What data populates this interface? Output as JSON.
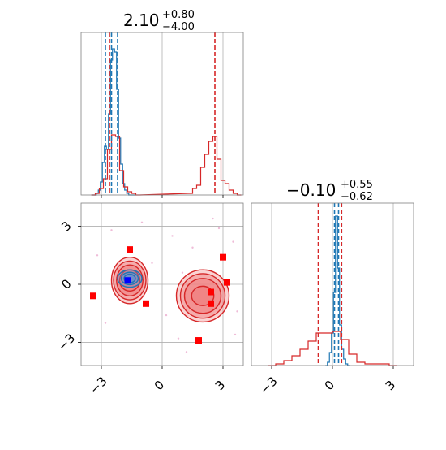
{
  "chart_data": [
    {
      "type": "histogram",
      "title": {
        "value": "2.10",
        "upper": "+0.80",
        "lower": "−4.00"
      },
      "xlim": [
        -4.0,
        4.0
      ],
      "ylim": [
        0,
        1.0
      ],
      "grid": true,
      "x_gridlines": [
        -3,
        0,
        3
      ],
      "colors": {
        "series_a": "#1f77b4",
        "series_b": "#d62728"
      },
      "series": [
        {
          "color": "#1f77b4",
          "x": [
            -3.4,
            -3.3,
            -3.2,
            -3.1,
            -3.0,
            -2.9,
            -2.8,
            -2.7,
            -2.6,
            -2.5,
            -2.4,
            -2.3,
            -2.2,
            -2.1,
            -2.0,
            -1.9,
            -1.8,
            -1.7,
            -1.6,
            -1.5,
            -1.4
          ],
          "values": [
            0,
            0,
            0.01,
            0.03,
            0.08,
            0.2,
            0.3,
            0.28,
            0.5,
            0.83,
            0.9,
            0.88,
            0.65,
            0.35,
            0.19,
            0.07,
            0.03,
            0.01,
            0,
            0,
            0
          ],
          "quantile_lines": [
            -2.8,
            -2.5,
            -2.2
          ]
        },
        {
          "color": "#d62728",
          "x": [
            -3.4,
            -3.2,
            -3.0,
            -2.8,
            -2.6,
            -2.4,
            -2.2,
            -2.0,
            -1.8,
            -1.6,
            -1.4,
            -1.2,
            1.4,
            1.6,
            1.8,
            2.0,
            2.2,
            2.4,
            2.6,
            2.8,
            3.0,
            3.2,
            3.4,
            3.6,
            3.8
          ],
          "values": [
            0,
            0.01,
            0.04,
            0.1,
            0.28,
            0.37,
            0.36,
            0.15,
            0.05,
            0.02,
            0.01,
            0,
            0.01,
            0.04,
            0.06,
            0.17,
            0.25,
            0.33,
            0.36,
            0.22,
            0.09,
            0.07,
            0.03,
            0.01,
            0
          ],
          "quantile_lines": [
            -2.6,
            2.6
          ]
        }
      ]
    },
    {
      "type": "scatter",
      "xlim": [
        -4.0,
        4.0
      ],
      "ylim": [
        -4.2,
        4.2
      ],
      "x_ticks": [
        "−3",
        "0",
        "3"
      ],
      "y_ticks": [
        "3",
        "0",
        "−3"
      ],
      "x_tick_values": [
        -3,
        0,
        3
      ],
      "y_tick_values": [
        3,
        0,
        -3
      ],
      "grid": true,
      "contours": [
        {
          "cx": -1.6,
          "cy": 0.2,
          "rx": [
            0.9,
            0.8,
            0.65,
            0.5
          ],
          "ry": [
            1.2,
            1.0,
            0.8,
            0.55
          ],
          "color": "#d62728",
          "fill": "#f08080"
        },
        {
          "cx": 2.0,
          "cy": -0.6,
          "rx": [
            1.3,
            1.1,
            0.9,
            0.55
          ],
          "ry": [
            1.35,
            1.15,
            0.9,
            0.5
          ],
          "color": "#d62728",
          "fill": "#f08080"
        },
        {
          "cx": -1.6,
          "cy": 0.3,
          "rx": [
            0.6,
            0.42,
            0.28
          ],
          "ry": [
            0.45,
            0.32,
            0.22
          ],
          "color": "#1f77b4",
          "fill": "#5a8fd8"
        }
      ],
      "markers": [
        {
          "x": -3.4,
          "y": -0.6,
          "color": "#ff0000"
        },
        {
          "x": -1.6,
          "y": 1.8,
          "color": "#ff0000"
        },
        {
          "x": -0.8,
          "y": -1.0,
          "color": "#ff0000"
        },
        {
          "x": 1.8,
          "y": -2.9,
          "color": "#ff0000"
        },
        {
          "x": 2.4,
          "y": -0.4,
          "color": "#ff0000"
        },
        {
          "x": 2.4,
          "y": -1.0,
          "color": "#ff0000"
        },
        {
          "x": 3.0,
          "y": 1.4,
          "color": "#ff0000"
        },
        {
          "x": 3.2,
          "y": 0.1,
          "color": "#ff0000"
        },
        {
          "x": -1.7,
          "y": 0.2,
          "color": "#0000ff"
        }
      ],
      "scatter_points": [
        {
          "x": -2.5,
          "y": 2.8
        },
        {
          "x": -1.0,
          "y": 3.2
        },
        {
          "x": 0.5,
          "y": 2.5
        },
        {
          "x": 2.5,
          "y": 3.4
        },
        {
          "x": 3.5,
          "y": 2.2
        },
        {
          "x": -3.2,
          "y": 1.5
        },
        {
          "x": 0.8,
          "y": -2.8
        },
        {
          "x": 1.2,
          "y": -3.5
        },
        {
          "x": 3.6,
          "y": -2.6
        },
        {
          "x": -0.5,
          "y": 1.1
        },
        {
          "x": 1.0,
          "y": 0.6
        },
        {
          "x": 2.8,
          "y": 2.9
        },
        {
          "x": 3.7,
          "y": -1.4
        },
        {
          "x": 1.5,
          "y": 1.9
        },
        {
          "x": -2.8,
          "y": -2.0
        },
        {
          "x": 0.2,
          "y": -1.6
        }
      ]
    },
    {
      "type": "histogram",
      "title": {
        "value": "−0.10",
        "upper": "+0.55",
        "lower": "−0.62"
      },
      "xlim": [
        -4.0,
        4.0
      ],
      "ylim": [
        0,
        1.0
      ],
      "x_ticks": [
        "−3",
        "0",
        "3"
      ],
      "x_tick_values": [
        -3,
        0,
        3
      ],
      "grid": true,
      "series": [
        {
          "color": "#1f77b4",
          "x": [
            -0.3,
            -0.2,
            -0.1,
            0.0,
            0.1,
            0.2,
            0.3,
            0.4,
            0.5,
            0.6,
            0.7,
            0.8
          ],
          "values": [
            0,
            0.02,
            0.08,
            0.2,
            0.45,
            0.92,
            0.6,
            0.25,
            0.1,
            0.04,
            0.01,
            0
          ],
          "quantile_lines": [
            0.1,
            0.3,
            0.45
          ]
        },
        {
          "color": "#d62728",
          "x": [
            -3.0,
            -2.6,
            -2.2,
            -1.8,
            -1.4,
            -1.0,
            -0.6,
            -0.2,
            0.2,
            0.6,
            1.0,
            1.4,
            1.8,
            2.2,
            2.6,
            3.0
          ],
          "values": [
            0,
            0.01,
            0.03,
            0.06,
            0.1,
            0.15,
            0.2,
            0.2,
            0.21,
            0.16,
            0.07,
            0.02,
            0.01,
            0.01,
            0.01,
            0
          ],
          "quantile_lines": [
            -0.7,
            0.45
          ]
        }
      ]
    }
  ]
}
